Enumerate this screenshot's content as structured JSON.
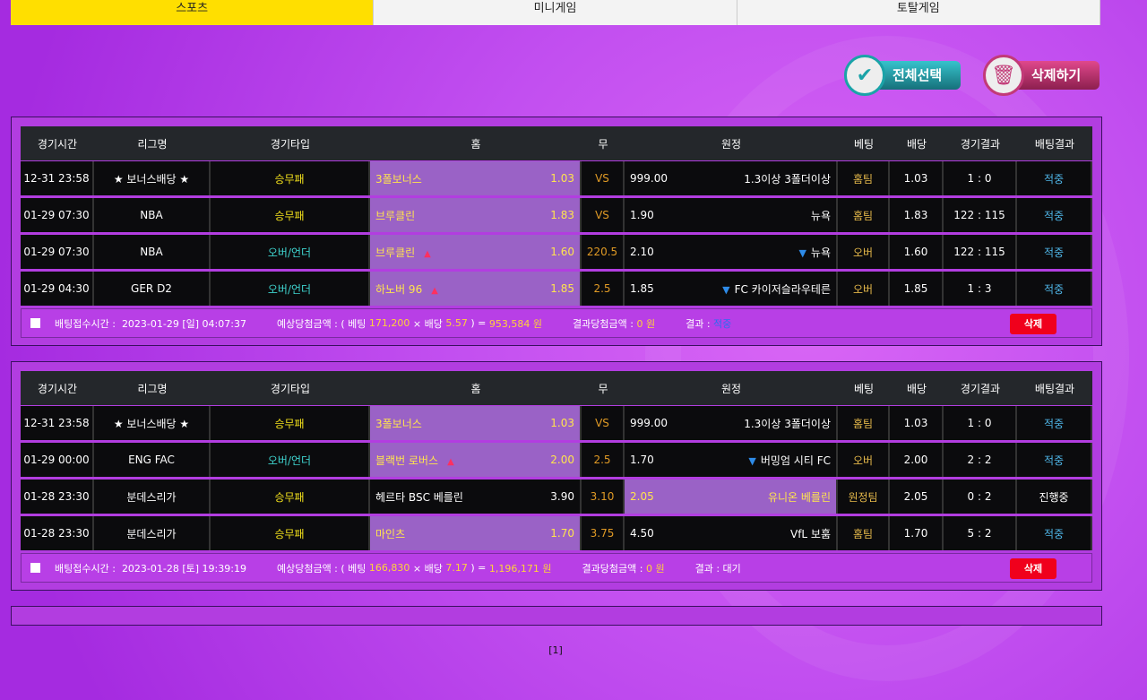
{
  "tabs": [
    {
      "label": "스포츠",
      "active": true
    },
    {
      "label": "미니게임"
    },
    {
      "label": "토탈게임"
    }
  ],
  "actions": {
    "select_all": "전체선택",
    "delete_all": "삭제하기"
  },
  "headers": [
    "경기시간",
    "리그명",
    "경기타입",
    "홈",
    "무",
    "원정",
    "베팅",
    "배당",
    "경기결과",
    "배팅결과"
  ],
  "bets": [
    {
      "rows": [
        {
          "time": "12-31 23:58",
          "league": "★ 보너스배당 ★",
          "type": "승무패",
          "type_color": "yellow",
          "home": "3폴보너스",
          "home_odds": "1.03",
          "draw": "VS",
          "away_odds": "999.00",
          "away": "1.3이상 3폴더이상",
          "selected": "home",
          "bet": "홈팀",
          "odds": "1.03",
          "score": "1 : 0",
          "result": "적중"
        },
        {
          "time": "01-29 07:30",
          "league": "NBA",
          "type": "승무패",
          "type_color": "yellow",
          "home": "브루클린",
          "home_odds": "1.83",
          "draw": "VS",
          "away_odds": "1.90",
          "away": "뉴욕",
          "selected": "home",
          "bet": "홈팀",
          "odds": "1.83",
          "score": "122 : 115",
          "result": "적중"
        },
        {
          "time": "01-29 07:30",
          "league": "NBA",
          "type": "오버/언더",
          "type_color": "cyan",
          "home": "브루클린",
          "home_odds": "1.60",
          "draw": "220.5",
          "away_odds": "2.10",
          "away": "뉴욕",
          "arrows": true,
          "selected": "home",
          "bet": "오버",
          "odds": "1.60",
          "score": "122 : 115",
          "result": "적중"
        },
        {
          "time": "01-29 04:30",
          "league": "GER D2",
          "type": "오버/언더",
          "type_color": "cyan",
          "home": "하노버 96",
          "home_odds": "1.85",
          "draw": "2.5",
          "away_odds": "1.85",
          "away": "FC 카이저슬라우테른",
          "arrows": true,
          "selected": "home",
          "bet": "오버",
          "odds": "1.85",
          "score": "1 : 3",
          "result": "적중"
        }
      ],
      "footer": {
        "time_label": "배팅접수시간 :",
        "time": "2023-01-29 [일] 04:07:37",
        "expected_label": "예상당첨금액 : ( 베팅",
        "stake": "171,200",
        "times": "× 배당",
        "total_odds": "5.57",
        "equals": ") =",
        "payout": "953,584 원",
        "won_label": "결과당첨금액 :",
        "won": "0 원",
        "result_label": "결과 :",
        "result": "적중",
        "delete": "삭제"
      }
    },
    {
      "rows": [
        {
          "time": "12-31 23:58",
          "league": "★ 보너스배당 ★",
          "type": "승무패",
          "type_color": "yellow",
          "home": "3폴보너스",
          "home_odds": "1.03",
          "draw": "VS",
          "away_odds": "999.00",
          "away": "1.3이상 3폴더이상",
          "selected": "home",
          "bet": "홈팀",
          "odds": "1.03",
          "score": "1 : 0",
          "result": "적중"
        },
        {
          "time": "01-29 00:00",
          "league": "ENG FAC",
          "type": "오버/언더",
          "type_color": "cyan",
          "home": "블랙번 로버스",
          "home_odds": "2.00",
          "draw": "2.5",
          "away_odds": "1.70",
          "away": "버밍엄 시티 FC",
          "arrows": true,
          "selected": "home",
          "bet": "오버",
          "odds": "2.00",
          "score": "2 : 2",
          "result": "적중"
        },
        {
          "time": "01-28 23:30",
          "league": "분데스리가",
          "type": "승무패",
          "type_color": "yellow",
          "home": "헤르타 BSC 베를린",
          "home_odds": "3.90",
          "draw": "3.10",
          "away_odds": "2.05",
          "away": "유니온 베를린",
          "selected": "away",
          "bet": "원정팀",
          "odds": "2.05",
          "score": "0 : 2",
          "result": "진행중"
        },
        {
          "time": "01-28 23:30",
          "league": "분데스리가",
          "type": "승무패",
          "type_color": "yellow",
          "home": "마인츠",
          "home_odds": "1.70",
          "draw": "3.75",
          "away_odds": "4.50",
          "away": "VfL 보훔",
          "selected": "home",
          "bet": "홈팀",
          "odds": "1.70",
          "score": "5 : 2",
          "result": "적중"
        }
      ],
      "footer": {
        "time_label": "배팅접수시간 :",
        "time": "2023-01-28 [토] 19:39:19",
        "expected_label": "예상당첨금액 : ( 베팅",
        "stake": "166,830",
        "times": "× 배당",
        "total_odds": "7.17",
        "equals": ") =",
        "payout": "1,196,171 원",
        "won_label": "결과당첨금액 :",
        "won": "0 원",
        "result_label": "결과 :",
        "result": "대기",
        "delete": "삭제"
      }
    }
  ],
  "pagination": "[1]",
  "colors": {
    "tab_active": "#ffdf00",
    "panel": "#b23de0",
    "highlight": "#9a62c6",
    "delete": "#f0001c"
  }
}
